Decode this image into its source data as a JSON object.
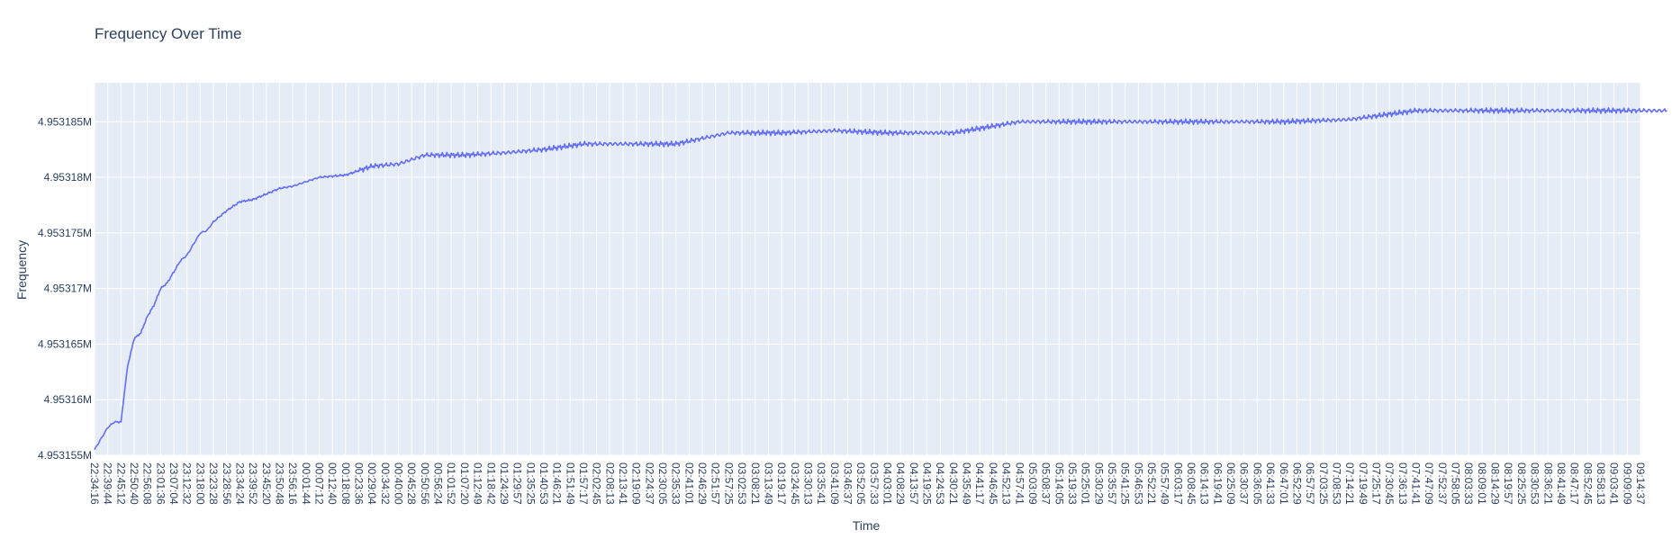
{
  "chart_data": {
    "type": "line",
    "title": "Frequency Over Time",
    "xlabel": "Time",
    "ylabel": "Frequency",
    "ylim": [
      4.953155,
      4.9531885
    ],
    "grid": true,
    "colors": {
      "line": "#636efa",
      "plot_bg": "#e5ecf6",
      "grid": "#ffffff",
      "text": "#2a3f5f"
    },
    "y_ticks": [
      {
        "value": 4.953155,
        "label": "4.953155M"
      },
      {
        "value": 4.95316,
        "label": "4.95316M"
      },
      {
        "value": 4.953165,
        "label": "4.953165M"
      },
      {
        "value": 4.95317,
        "label": "4.95317M"
      },
      {
        "value": 4.953175,
        "label": "4.953175M"
      },
      {
        "value": 4.95318,
        "label": "4.95318M"
      },
      {
        "value": 4.953185,
        "label": "4.953185M"
      }
    ],
    "x_tick_labels": [
      "22:34:16",
      "22:39:44",
      "22:45:12",
      "22:50:40",
      "22:56:08",
      "23:01:36",
      "23:07:04",
      "23:12:32",
      "23:18:00",
      "23:23:28",
      "23:28:56",
      "23:34:24",
      "23:39:52",
      "23:45:20",
      "23:50:48",
      "23:56:16",
      "00:01:44",
      "00:07:12",
      "00:12:40",
      "00:18:08",
      "00:23:36",
      "00:29:04",
      "00:34:32",
      "00:40:00",
      "00:45:28",
      "00:50:56",
      "00:56:24",
      "01:01:52",
      "01:07:20",
      "01:12:49",
      "01:18:42",
      "01:24:29",
      "01:29:57",
      "01:35:25",
      "01:40:53",
      "01:46:21",
      "01:51:49",
      "01:57:17",
      "02:02:45",
      "02:08:13",
      "02:13:41",
      "02:19:09",
      "02:24:37",
      "02:30:05",
      "02:35:33",
      "02:41:01",
      "02:46:29",
      "02:51:57",
      "02:57:25",
      "03:02:53",
      "03:08:21",
      "03:13:49",
      "03:19:17",
      "03:24:45",
      "03:30:13",
      "03:35:41",
      "03:41:09",
      "03:46:37",
      "03:52:05",
      "03:57:33",
      "04:03:01",
      "04:08:29",
      "04:13:57",
      "04:19:25",
      "04:24:53",
      "04:30:21",
      "04:35:49",
      "04:41:17",
      "04:46:45",
      "04:52:13",
      "04:57:41",
      "05:03:09",
      "05:08:37",
      "05:14:05",
      "05:19:33",
      "05:25:01",
      "05:30:29",
      "05:35:57",
      "05:41:25",
      "05:46:53",
      "05:52:21",
      "05:57:49",
      "06:03:17",
      "06:08:45",
      "06:14:13",
      "06:19:41",
      "06:25:09",
      "06:30:37",
      "06:36:05",
      "06:41:33",
      "06:47:01",
      "06:52:29",
      "06:57:57",
      "07:03:25",
      "07:08:53",
      "07:14:21",
      "07:19:49",
      "07:25:17",
      "07:30:45",
      "07:36:13",
      "07:41:41",
      "07:47:09",
      "07:52:37",
      "07:58:05",
      "08:03:33",
      "08:09:01",
      "08:14:29",
      "08:19:57",
      "08:25:25",
      "08:30:53",
      "08:36:21",
      "08:41:49",
      "08:47:17",
      "08:52:45",
      "08:58:13",
      "09:03:41",
      "09:09:09",
      "09:14:37"
    ],
    "series": [
      {
        "x": [
          0,
          0.5,
          1,
          1.5,
          2,
          2.5,
          3,
          3.5,
          4,
          4.5,
          5,
          5.5,
          6,
          6.5,
          7,
          7.5,
          8,
          8.5,
          9,
          9.5,
          10,
          11,
          12,
          13,
          14,
          15,
          17,
          19,
          21,
          23,
          25,
          28,
          31,
          34,
          37,
          40,
          44,
          48,
          52,
          56,
          60,
          65,
          70,
          75,
          80,
          85,
          90,
          95,
          100,
          105,
          110,
          115,
          119
        ],
        "y": [
          4.9531555,
          4.9531565,
          4.9531575,
          4.953158,
          4.953158,
          4.953163,
          4.9531655,
          4.953166,
          4.9531675,
          4.9531685,
          4.95317,
          4.9531705,
          4.9531715,
          4.9531725,
          4.953173,
          4.953174,
          4.953175,
          4.9531752,
          4.953176,
          4.9531765,
          4.953177,
          4.9531778,
          4.953178,
          4.9531785,
          4.953179,
          4.9531792,
          4.95318,
          4.9531802,
          4.953181,
          4.9531812,
          4.953182,
          4.953182,
          4.9531822,
          4.9531825,
          4.953183,
          4.953183,
          4.953183,
          4.953184,
          4.953184,
          4.9531842,
          4.953184,
          4.953184,
          4.953185,
          4.953185,
          4.953185,
          4.953185,
          4.953185,
          4.9531852,
          4.953186,
          4.953186,
          4.953186,
          4.953186,
          4.953186
        ]
      }
    ]
  }
}
